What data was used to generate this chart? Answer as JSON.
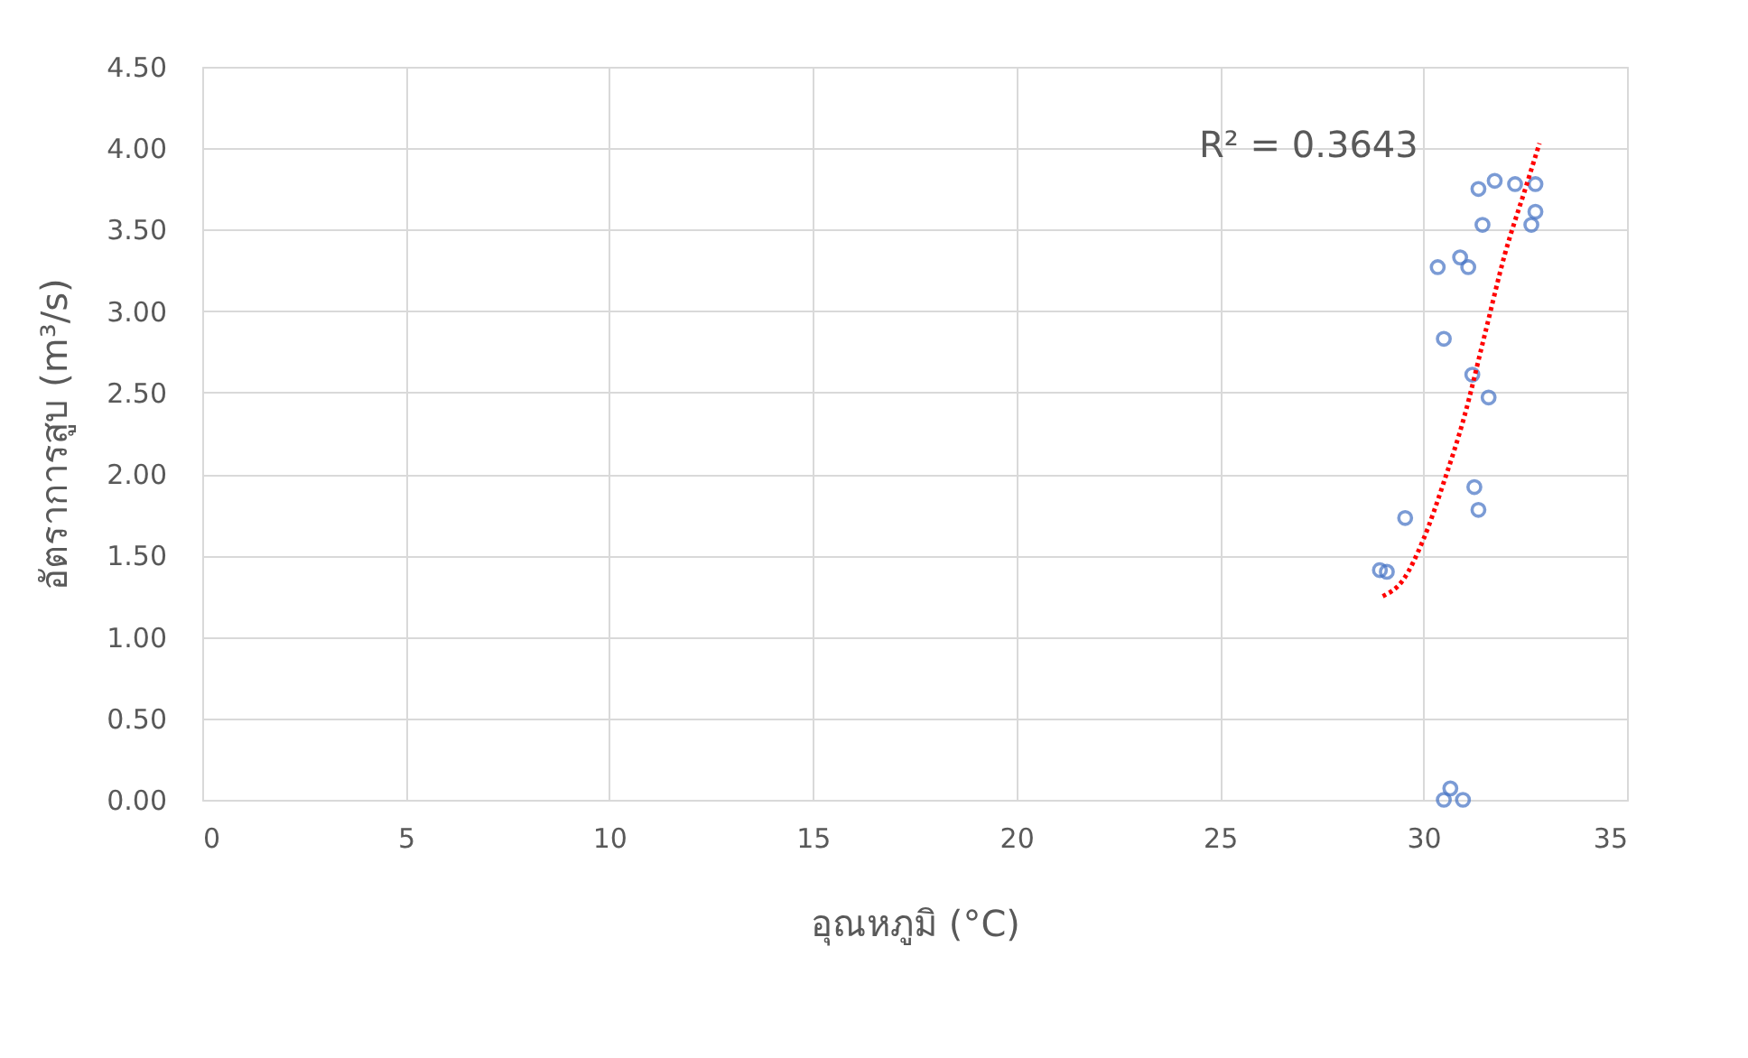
{
  "chart_data": {
    "type": "scatter",
    "xlabel": "อุณหภูมิ (°C)",
    "ylabel": "อัตราการสูบ (m³/s)",
    "xlim": [
      0,
      35
    ],
    "xticks": [
      0,
      5,
      10,
      15,
      20,
      25,
      30,
      35
    ],
    "ylim": [
      0,
      4.5
    ],
    "yticks": [
      {
        "value": 0,
        "label": "0.00"
      },
      {
        "value": 0.5,
        "label": "0.50"
      },
      {
        "value": 1,
        "label": "1.00"
      },
      {
        "value": 1.5,
        "label": "1.50"
      },
      {
        "value": 2,
        "label": "2.00"
      },
      {
        "value": 2.5,
        "label": "2.50"
      },
      {
        "value": 3,
        "label": "3.00"
      },
      {
        "value": 3.5,
        "label": "3.50"
      },
      {
        "value": 4,
        "label": "4.00"
      },
      {
        "value": 4.5,
        "label": "4.50"
      }
    ],
    "grid": true,
    "annotations": [
      "R² = 0.3643"
    ],
    "series": [
      {
        "type": "scatter",
        "color": "#4472c4",
        "marker": "circle",
        "x": [
          28.93,
          29.1,
          29.55,
          30.35,
          30.5,
          30.5,
          30.66,
          30.97,
          30.9,
          31.1,
          31.2,
          31.25,
          31.35,
          31.35,
          31.45,
          31.6,
          31.75,
          32.25,
          32.75,
          32.75,
          32.65
        ],
        "values": [
          1.41,
          1.4,
          1.73,
          3.27,
          2.83,
          0,
          0.07,
          0,
          3.33,
          3.27,
          2.61,
          1.92,
          3.75,
          1.78,
          3.53,
          2.47,
          3.8,
          3.78,
          3.78,
          3.61,
          3.53
        ]
      },
      {
        "type": "line",
        "color": "#ff0000",
        "marker": "none",
        "line_style": "dotted",
        "x": [
          29.0,
          29.5,
          30.0,
          30.5,
          31.0,
          31.5,
          32.0,
          32.5,
          32.85
        ],
        "values": [
          1.25,
          1.35,
          1.6,
          1.95,
          2.35,
          2.85,
          3.35,
          3.75,
          4.03
        ]
      }
    ]
  }
}
